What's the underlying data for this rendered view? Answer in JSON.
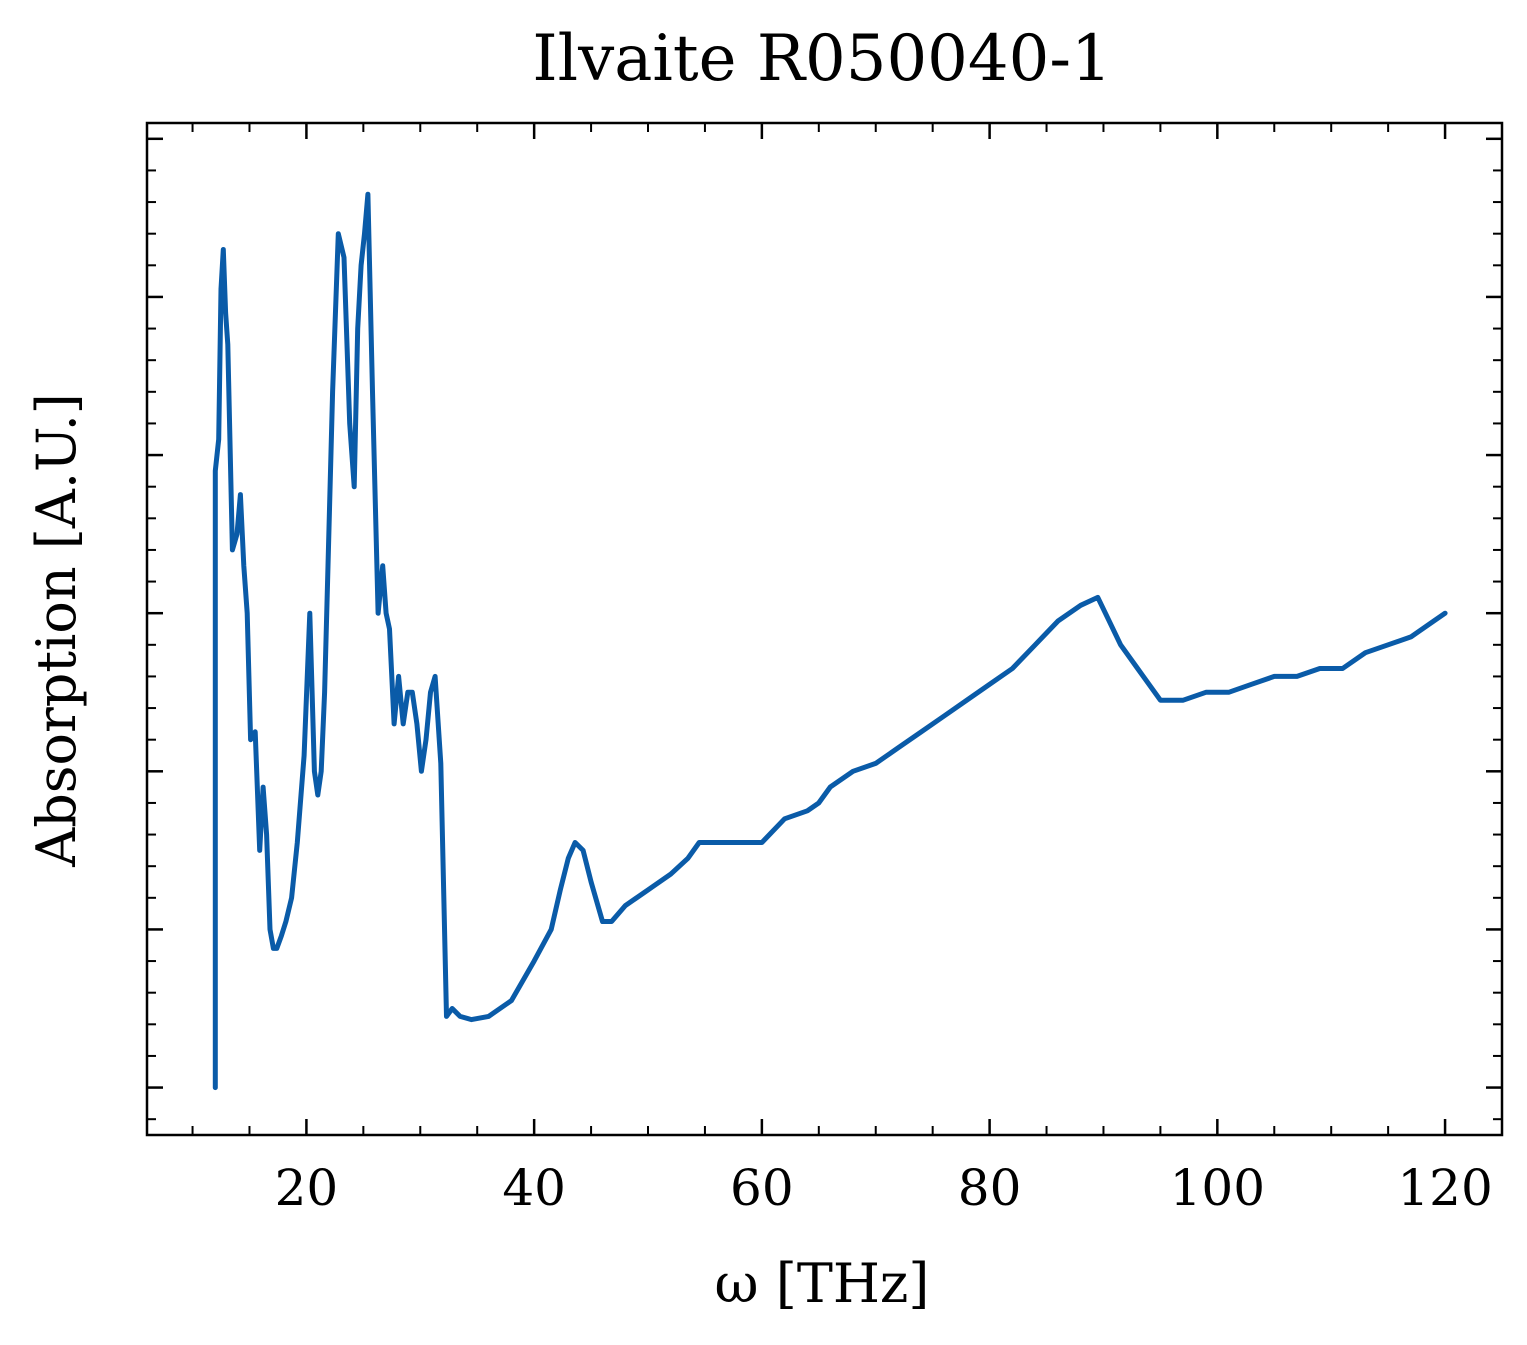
{
  "chart_data": {
    "type": "line",
    "title": "Ilvaite R050040-1",
    "xlabel": "ω [THz]",
    "ylabel": "Absorption [A.U.]",
    "xlim": [
      6,
      125
    ],
    "ylim": [
      -0.3,
      6.1
    ],
    "x_ticks": [
      20,
      40,
      60,
      80,
      100,
      120
    ],
    "y_ticks_unlabeled": [
      0,
      1,
      2,
      3,
      4,
      5,
      6
    ],
    "grid": false,
    "legend": "none",
    "line_color": "#0a5ba8",
    "series": [
      {
        "x": [
          12.0,
          12.0,
          12.3,
          12.5,
          12.7,
          12.9,
          13.1,
          13.5,
          13.9,
          14.2,
          14.5,
          14.8,
          15.1,
          15.5,
          15.9,
          16.2,
          16.5,
          16.8,
          17.1,
          17.4,
          17.8,
          18.2,
          18.7,
          19.2,
          19.8,
          20.3,
          20.7,
          21.0,
          21.3,
          21.6,
          21.9,
          22.3,
          22.8,
          23.3,
          23.8,
          24.2,
          24.5,
          24.8,
          25.1,
          25.4,
          25.8,
          26.3,
          26.7,
          27.0,
          27.3,
          27.7,
          28.1,
          28.5,
          28.9,
          29.3,
          29.7,
          30.1,
          30.5,
          30.9,
          31.3,
          31.8,
          32.3,
          32.8,
          33.5,
          34.5,
          36.0,
          38.0,
          40.0,
          41.5,
          42.3,
          43.0,
          43.6,
          44.3,
          45.0,
          46.0,
          46.8,
          48.0,
          50.0,
          52.0,
          53.5,
          54.5,
          56.0,
          58.0,
          59.0,
          60.0,
          62.0,
          64.0,
          65.0,
          66.0,
          68.0,
          70.0,
          72.0,
          74.0,
          76.0,
          78.0,
          80.0,
          82.0,
          84.0,
          86.0,
          88.0,
          89.5,
          90.5,
          91.5,
          93.0,
          95.0,
          97.0,
          99.0,
          101.0,
          103.0,
          105.0,
          107.0,
          109.0,
          111.0,
          113.0,
          115.0,
          117.0,
          119.0,
          120.0
        ],
        "y": [
          0.0,
          3.9,
          4.1,
          5.05,
          5.3,
          4.9,
          4.7,
          3.4,
          3.5,
          3.75,
          3.3,
          3.0,
          2.2,
          2.25,
          1.5,
          1.9,
          1.6,
          1.0,
          0.88,
          0.88,
          0.96,
          1.05,
          1.2,
          1.55,
          2.1,
          3.0,
          2.0,
          1.85,
          2.0,
          2.5,
          3.3,
          4.4,
          5.4,
          5.25,
          4.2,
          3.8,
          4.8,
          5.2,
          5.4,
          5.65,
          4.4,
          3.0,
          3.3,
          3.0,
          2.9,
          2.3,
          2.6,
          2.3,
          2.5,
          2.5,
          2.3,
          2.0,
          2.2,
          2.5,
          2.6,
          2.05,
          0.45,
          0.5,
          0.45,
          0.43,
          0.45,
          0.55,
          0.8,
          1.0,
          1.25,
          1.45,
          1.55,
          1.5,
          1.3,
          1.05,
          1.05,
          1.15,
          1.25,
          1.35,
          1.45,
          1.55,
          1.55,
          1.55,
          1.55,
          1.55,
          1.7,
          1.75,
          1.8,
          1.9,
          2.0,
          2.05,
          2.15,
          2.25,
          2.35,
          2.45,
          2.55,
          2.65,
          2.8,
          2.95,
          3.05,
          3.1,
          2.95,
          2.8,
          2.65,
          2.45,
          2.45,
          2.5,
          2.5,
          2.55,
          2.6,
          2.6,
          2.65,
          2.65,
          2.75,
          2.8,
          2.85,
          2.95,
          3.0
        ]
      }
    ]
  }
}
